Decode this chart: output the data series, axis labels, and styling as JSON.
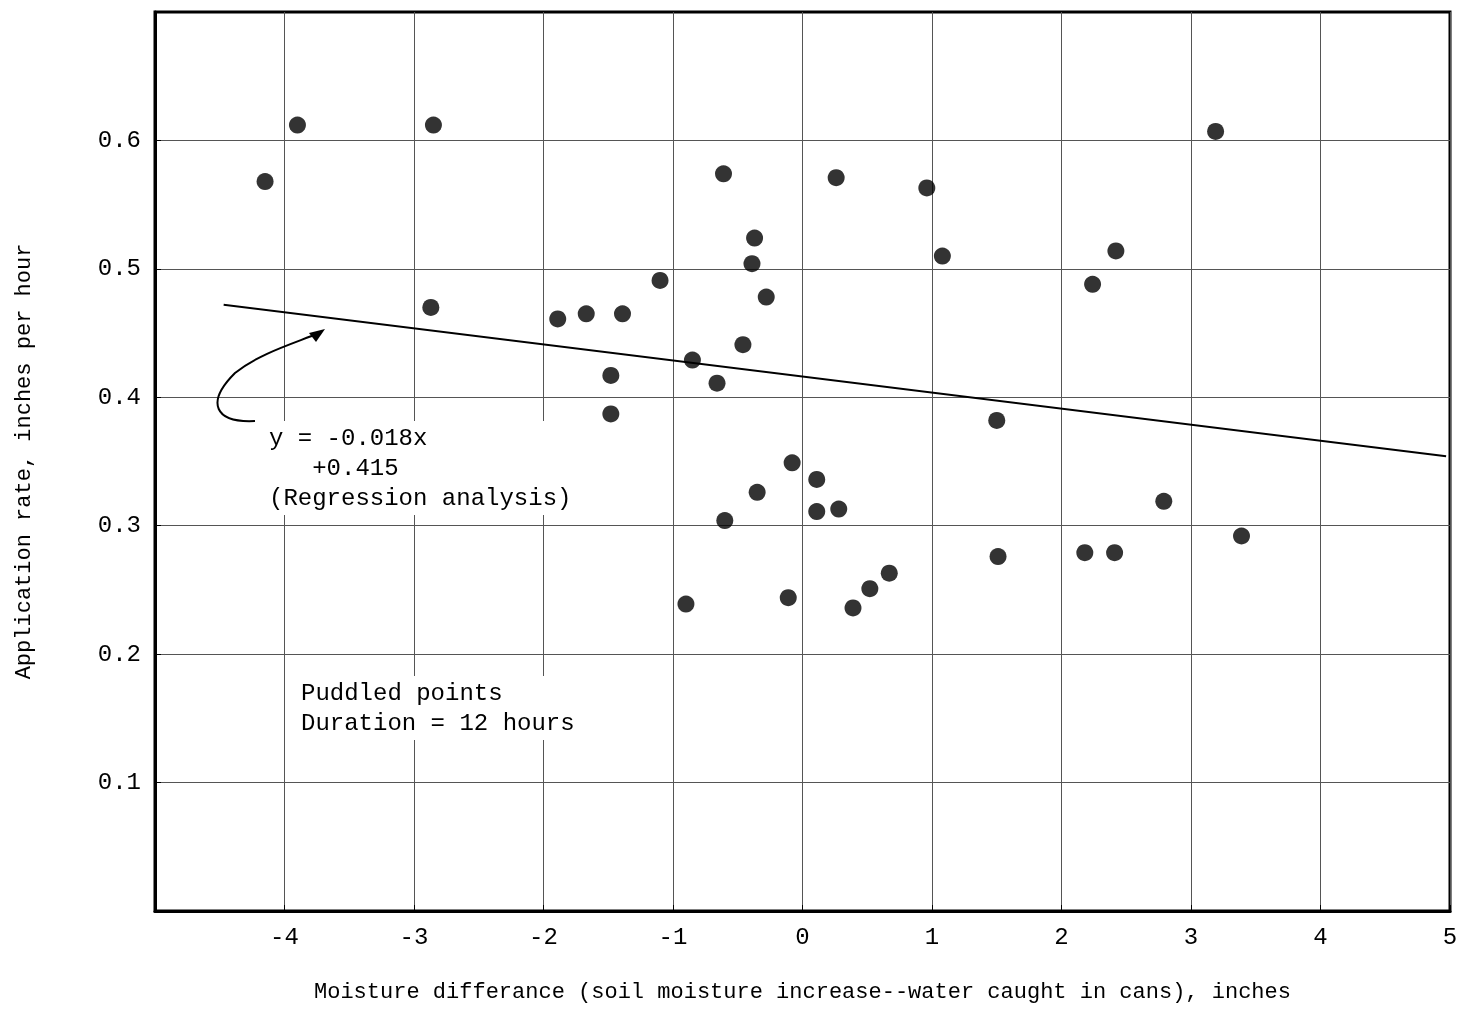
{
  "chart_data": {
    "type": "scatter",
    "xlabel": "Moisture differance (soil moisture increase--water caught in cans), inches",
    "ylabel": "Application rate, inches per hour",
    "xlim": [
      -5,
      5
    ],
    "ylim": [
      0,
      0.7
    ],
    "xticks": [
      {
        "value": -5,
        "label": null
      },
      -4,
      -3,
      -2,
      -1,
      0,
      1,
      2,
      3,
      4,
      5
    ],
    "yticks": [
      {
        "value": 0,
        "label": null
      },
      0.1,
      0.2,
      0.3,
      0.4,
      0.5,
      0.6
    ],
    "grid": true,
    "annotations": [
      "y = -0.018x\n   +0.415\n(Regression analysis)",
      "Puddled points\nDuration = 12 hours"
    ],
    "series": [
      {
        "color": "#000000",
        "marker": "circle",
        "x": [
          -4.15,
          -3.9,
          -2.85,
          -2.87,
          -1.89,
          -1.67,
          -1.39,
          -1.1,
          -1.48,
          -1.48,
          -0.85,
          -0.66,
          -0.61,
          -0.37,
          -0.39,
          -0.28,
          -0.46,
          -0.6,
          -0.35,
          -0.9,
          -0.08,
          0.11,
          0.11,
          0.28,
          0.26,
          -0.11,
          0.39,
          0.52,
          0.67,
          0.96,
          1.08,
          1.5,
          1.51,
          2.24,
          2.42,
          2.18,
          2.41,
          2.79,
          3.19,
          3.39
        ],
        "values": [
          0.568,
          0.612,
          0.612,
          0.47,
          0.461,
          0.465,
          0.465,
          0.491,
          0.417,
          0.387,
          0.429,
          0.411,
          0.574,
          0.524,
          0.504,
          0.478,
          0.441,
          0.304,
          0.326,
          0.239,
          0.349,
          0.336,
          0.311,
          0.313,
          0.571,
          0.244,
          0.236,
          0.251,
          0.263,
          0.563,
          0.51,
          0.382,
          0.276,
          0.488,
          0.514,
          0.279,
          0.279,
          0.319,
          0.607,
          0.292
        ]
      },
      {
        "type": "line",
        "color": "#000000",
        "x": [
          -4.47,
          4.97
        ],
        "values": [
          0.472,
          0.354
        ]
      }
    ]
  }
}
